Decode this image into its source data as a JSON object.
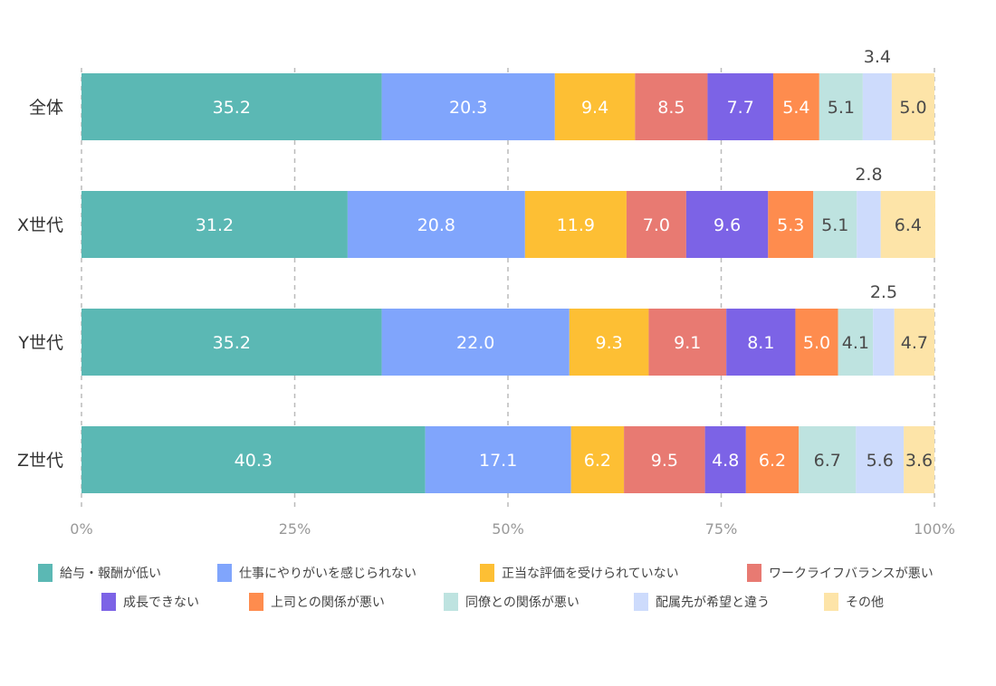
{
  "chart_data": {
    "type": "bar",
    "orientation": "horizontal",
    "stacked": true,
    "categories": [
      "全体",
      "X世代",
      "Y世代",
      "Z世代"
    ],
    "xlim": [
      0,
      100
    ],
    "xticks": [
      "0%",
      "25%",
      "50%",
      "75%",
      "100%"
    ],
    "grid": true,
    "legend_position": "bottom",
    "series": [
      {
        "name": "給与・報酬が低い",
        "color": "#5bb8b4",
        "label_color": "#ffffff",
        "values": [
          35.2,
          31.2,
          35.2,
          40.3
        ]
      },
      {
        "name": "仕事にやりがいを感じられない",
        "color": "#80a5fc",
        "label_color": "#ffffff",
        "values": [
          20.3,
          20.8,
          22.0,
          17.1
        ]
      },
      {
        "name": "正当な評価を受けられていない",
        "color": "#fdbf34",
        "label_color": "#ffffff",
        "values": [
          9.4,
          11.9,
          9.3,
          6.2
        ]
      },
      {
        "name": "ワークライフバランスが悪い",
        "color": "#e87a72",
        "label_color": "#ffffff",
        "values": [
          8.5,
          7.0,
          9.1,
          9.5
        ]
      },
      {
        "name": "成長できない",
        "color": "#7c63e6",
        "label_color": "#ffffff",
        "values": [
          7.7,
          9.6,
          8.1,
          4.8
        ]
      },
      {
        "name": "上司との関係が悪い",
        "color": "#fe8c4e",
        "label_color": "#ffffff",
        "values": [
          5.4,
          5.3,
          5.0,
          6.2
        ]
      },
      {
        "name": "同僚との関係が悪い",
        "color": "#bee3e0",
        "label_color": "#4a4a4a",
        "values": [
          5.1,
          5.1,
          4.1,
          6.7
        ]
      },
      {
        "name": "配属先が希望と違う",
        "color": "#cddbfc",
        "label_color": "#4a4a4a",
        "values": [
          3.4,
          2.8,
          2.5,
          5.6
        ]
      },
      {
        "name": "その他",
        "color": "#fde4a8",
        "label_color": "#4a4a4a",
        "values": [
          5.0,
          6.4,
          4.7,
          3.6
        ]
      }
    ]
  }
}
